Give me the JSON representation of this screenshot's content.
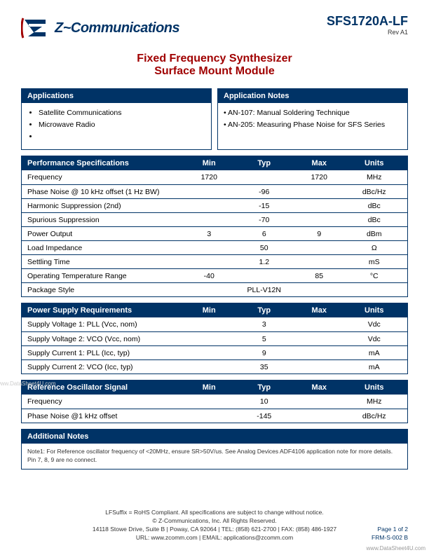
{
  "header": {
    "company": "Z~Communications",
    "part_number": "SFS1720A-LF",
    "revision": "Rev  A1",
    "logo_colors": {
      "blue": "#003366",
      "red": "#a00000"
    }
  },
  "title": {
    "line1": "Fixed Frequency Synthesizer",
    "line2": "Surface Mount Module"
  },
  "applications": {
    "heading": "Applications",
    "items": [
      "Satellite Communications",
      "Microwave Radio",
      ""
    ]
  },
  "app_notes": {
    "heading": "Application Notes",
    "items": [
      "AN-107: Manual Soldering Technique",
      "AN-205: Measuring Phase Noise for SFS Series"
    ]
  },
  "spec_headers": {
    "min": "Min",
    "typ": "Typ",
    "max": "Max",
    "units": "Units"
  },
  "perf_specs": {
    "heading": "Performance Specifications",
    "rows": [
      {
        "param": "Frequency",
        "min": "1720",
        "typ": "",
        "max": "1720",
        "units": "MHz"
      },
      {
        "param": "Phase Noise @ 10 kHz offset (1 Hz BW)",
        "min": "",
        "typ": "-96",
        "max": "",
        "units": "dBc/Hz"
      },
      {
        "param": "Harmonic Suppression (2nd)",
        "min": "",
        "typ": "-15",
        "max": "",
        "units": "dBc"
      },
      {
        "param": "Spurious Suppression",
        "min": "",
        "typ": "-70",
        "max": "",
        "units": "dBc"
      },
      {
        "param": "Power Output",
        "min": "3",
        "typ": "6",
        "max": "9",
        "units": "dBm"
      },
      {
        "param": "Load Impedance",
        "min": "",
        "typ": "50",
        "max": "",
        "units": "Ω"
      },
      {
        "param": "Settling Time",
        "min": "",
        "typ": "1.2",
        "max": "",
        "units": "mS"
      },
      {
        "param": "Operating Temperature Range",
        "min": "-40",
        "typ": "",
        "max": "85",
        "units": "°C"
      },
      {
        "param": "Package Style",
        "min": "",
        "typ": "PLL-V12N",
        "max": "",
        "units": ""
      }
    ]
  },
  "power_reqs": {
    "heading": "Power Supply Requirements",
    "rows": [
      {
        "param": "Supply Voltage 1: PLL (Vcc, nom)",
        "min": "",
        "typ": "3",
        "max": "",
        "units": "Vdc"
      },
      {
        "param": "Supply Voltage 2: VCO (Vcc, nom)",
        "min": "",
        "typ": "5",
        "max": "",
        "units": "Vdc"
      },
      {
        "param": "Supply Current 1: PLL (Icc, typ)",
        "min": "",
        "typ": "9",
        "max": "",
        "units": "mA"
      },
      {
        "param": "Supply Current 2: VCO (Icc, typ)",
        "min": "",
        "typ": "35",
        "max": "",
        "units": "mA"
      }
    ]
  },
  "ref_osc": {
    "heading": "Reference Oscillator Signal",
    "rows": [
      {
        "param": "Frequency",
        "min": "",
        "typ": "10",
        "max": "",
        "units": "MHz"
      },
      {
        "param": "Phase Noise @1 kHz offset",
        "min": "",
        "typ": "-145",
        "max": "",
        "units": "dBc/Hz"
      }
    ]
  },
  "additional_notes": {
    "heading": "Additional Notes",
    "text1": "Note1: For Reference oscillator frequency of <20MHz, ensure SR>50V/us. See Analog Devices ADF4106 application note for more details.",
    "text2": "Pin 7, 8, 9 are no connect."
  },
  "footer": {
    "line1": "LFSuffix = RoHS Compliant. All specifications are subject to change without notice.",
    "line2": "© Z-Communications, Inc. All Rights Reserved.",
    "line3": "14118 Stowe Drive, Suite B | Poway, CA 92064 | TEL: (858) 621-2700 | FAX: (858) 486-1927",
    "line4": "URL: www.zcomm.com | EMAIL: applications@zcomm.com",
    "page": "Page 1 of 2",
    "form": "FRM-S-002 B"
  },
  "watermarks": {
    "left": "www.DataSheet4U.com",
    "br": "www.DataSheet4U.com"
  },
  "colors": {
    "header_bg": "#003366",
    "header_text": "#ffffff",
    "border": "#003366",
    "title": "#a00000"
  }
}
